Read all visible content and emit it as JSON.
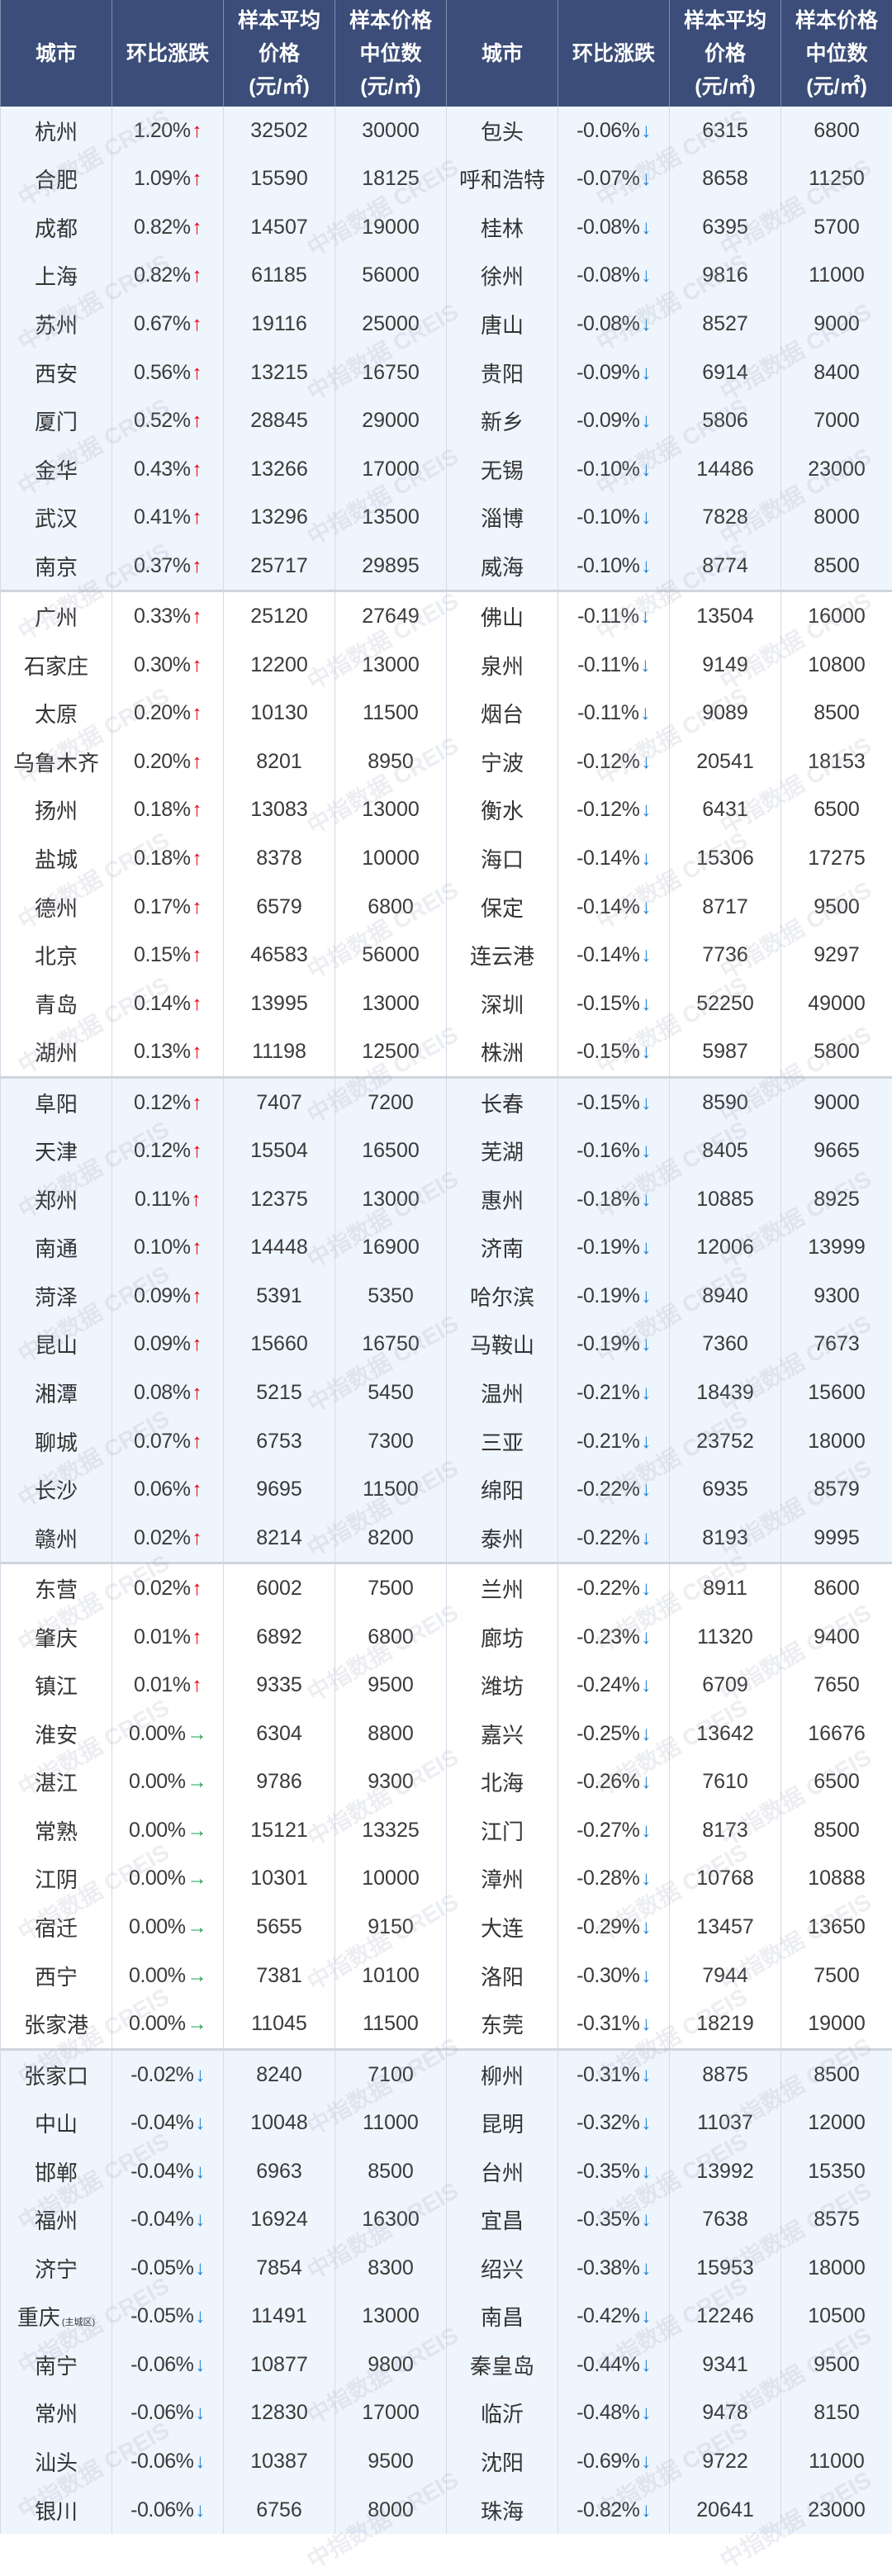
{
  "header": {
    "city": "城市",
    "change": "环比涨跌",
    "avg_price": [
      "样本平均",
      "价格",
      "(元/㎡)"
    ],
    "median_price": [
      "样本价格",
      "中位数",
      "(元/㎡)"
    ]
  },
  "colors": {
    "header_bg": "#3b4d78",
    "up": "#e60012",
    "down": "#1e7fd0",
    "flat": "#1aa34a",
    "band": "#eef5fd"
  },
  "icons": {
    "up": "arrow-up-icon",
    "down": "arrow-down-icon",
    "flat": "arrow-right-icon"
  },
  "watermark": "中指数据 CREIS",
  "rows": [
    [
      "杭州",
      "1.20%",
      "32502",
      "30000",
      "包头",
      "-0.06%",
      "6315",
      "6800"
    ],
    [
      "合肥",
      "1.09%",
      "15590",
      "18125",
      "呼和浩特",
      "-0.07%",
      "8658",
      "11250"
    ],
    [
      "成都",
      "0.82%",
      "14507",
      "19000",
      "桂林",
      "-0.08%",
      "6395",
      "5700"
    ],
    [
      "上海",
      "0.82%",
      "61185",
      "56000",
      "徐州",
      "-0.08%",
      "9816",
      "11000"
    ],
    [
      "苏州",
      "0.67%",
      "19116",
      "25000",
      "唐山",
      "-0.08%",
      "8527",
      "9000"
    ],
    [
      "西安",
      "0.56%",
      "13215",
      "16750",
      "贵阳",
      "-0.09%",
      "6914",
      "8400"
    ],
    [
      "厦门",
      "0.52%",
      "28845",
      "29000",
      "新乡",
      "-0.09%",
      "5806",
      "7000"
    ],
    [
      "金华",
      "0.43%",
      "13266",
      "17000",
      "无锡",
      "-0.10%",
      "14486",
      "23000"
    ],
    [
      "武汉",
      "0.41%",
      "13296",
      "13500",
      "淄博",
      "-0.10%",
      "7828",
      "8000"
    ],
    [
      "南京",
      "0.37%",
      "25717",
      "29895",
      "威海",
      "-0.10%",
      "8774",
      "8500"
    ],
    [
      "广州",
      "0.33%",
      "25120",
      "27649",
      "佛山",
      "-0.11%",
      "13504",
      "16000"
    ],
    [
      "石家庄",
      "0.30%",
      "12200",
      "13000",
      "泉州",
      "-0.11%",
      "9149",
      "10800"
    ],
    [
      "太原",
      "0.20%",
      "10130",
      "11500",
      "烟台",
      "-0.11%",
      "9089",
      "8500"
    ],
    [
      "乌鲁木齐",
      "0.20%",
      "8201",
      "8950",
      "宁波",
      "-0.12%",
      "20541",
      "18153"
    ],
    [
      "扬州",
      "0.18%",
      "13083",
      "13000",
      "衡水",
      "-0.12%",
      "6431",
      "6500"
    ],
    [
      "盐城",
      "0.18%",
      "8378",
      "10000",
      "海口",
      "-0.14%",
      "15306",
      "17275"
    ],
    [
      "德州",
      "0.17%",
      "6579",
      "6800",
      "保定",
      "-0.14%",
      "8717",
      "9500"
    ],
    [
      "北京",
      "0.15%",
      "46583",
      "56000",
      "连云港",
      "-0.14%",
      "7736",
      "9297"
    ],
    [
      "青岛",
      "0.14%",
      "13995",
      "13000",
      "深圳",
      "-0.15%",
      "52250",
      "49000"
    ],
    [
      "湖州",
      "0.13%",
      "11198",
      "12500",
      "株洲",
      "-0.15%",
      "5987",
      "5800"
    ],
    [
      "阜阳",
      "0.12%",
      "7407",
      "7200",
      "长春",
      "-0.15%",
      "8590",
      "9000"
    ],
    [
      "天津",
      "0.12%",
      "15504",
      "16500",
      "芜湖",
      "-0.16%",
      "8405",
      "9665"
    ],
    [
      "郑州",
      "0.11%",
      "12375",
      "13000",
      "惠州",
      "-0.18%",
      "10885",
      "8925"
    ],
    [
      "南通",
      "0.10%",
      "14448",
      "16900",
      "济南",
      "-0.19%",
      "12006",
      "13999"
    ],
    [
      "菏泽",
      "0.09%",
      "5391",
      "5350",
      "哈尔滨",
      "-0.19%",
      "8940",
      "9300"
    ],
    [
      "昆山",
      "0.09%",
      "15660",
      "16750",
      "马鞍山",
      "-0.19%",
      "7360",
      "7673"
    ],
    [
      "湘潭",
      "0.08%",
      "5215",
      "5450",
      "温州",
      "-0.21%",
      "18439",
      "15600"
    ],
    [
      "聊城",
      "0.07%",
      "6753",
      "7300",
      "三亚",
      "-0.21%",
      "23752",
      "18000"
    ],
    [
      "长沙",
      "0.06%",
      "9695",
      "11500",
      "绵阳",
      "-0.22%",
      "6935",
      "8579"
    ],
    [
      "赣州",
      "0.02%",
      "8214",
      "8200",
      "泰州",
      "-0.22%",
      "8193",
      "9995"
    ],
    [
      "东营",
      "0.02%",
      "6002",
      "7500",
      "兰州",
      "-0.22%",
      "8911",
      "8600"
    ],
    [
      "肇庆",
      "0.01%",
      "6892",
      "6800",
      "廊坊",
      "-0.23%",
      "11320",
      "9400"
    ],
    [
      "镇江",
      "0.01%",
      "9335",
      "9500",
      "潍坊",
      "-0.24%",
      "6709",
      "7650"
    ],
    [
      "淮安",
      "0.00%",
      "6304",
      "8800",
      "嘉兴",
      "-0.25%",
      "13642",
      "16676"
    ],
    [
      "湛江",
      "0.00%",
      "9786",
      "9300",
      "北海",
      "-0.26%",
      "7610",
      "6500"
    ],
    [
      "常熟",
      "0.00%",
      "15121",
      "13325",
      "江门",
      "-0.27%",
      "8173",
      "8500"
    ],
    [
      "江阴",
      "0.00%",
      "10301",
      "10000",
      "漳州",
      "-0.28%",
      "10768",
      "10888"
    ],
    [
      "宿迁",
      "0.00%",
      "5655",
      "9150",
      "大连",
      "-0.29%",
      "13457",
      "13650"
    ],
    [
      "西宁",
      "0.00%",
      "7381",
      "10100",
      "洛阳",
      "-0.30%",
      "7944",
      "7500"
    ],
    [
      "张家港",
      "0.00%",
      "11045",
      "11500",
      "东莞",
      "-0.31%",
      "18219",
      "19000"
    ],
    [
      "张家口",
      "-0.02%",
      "8240",
      "7100",
      "柳州",
      "-0.31%",
      "8875",
      "8500"
    ],
    [
      "中山",
      "-0.04%",
      "10048",
      "11000",
      "昆明",
      "-0.32%",
      "11037",
      "12000"
    ],
    [
      "邯郸",
      "-0.04%",
      "6963",
      "8500",
      "台州",
      "-0.35%",
      "13992",
      "15350"
    ],
    [
      "福州",
      "-0.04%",
      "16924",
      "16300",
      "宜昌",
      "-0.35%",
      "7638",
      "8575"
    ],
    [
      "济宁",
      "-0.05%",
      "7854",
      "8300",
      "绍兴",
      "-0.38%",
      "15953",
      "18000"
    ],
    [
      "重庆",
      "-0.05%",
      "11491",
      "13000",
      "南昌",
      "-0.42%",
      "12246",
      "10500"
    ],
    [
      "南宁",
      "-0.06%",
      "10877",
      "9800",
      "秦皇岛",
      "-0.44%",
      "9341",
      "9500"
    ],
    [
      "常州",
      "-0.06%",
      "12830",
      "17000",
      "临沂",
      "-0.48%",
      "9478",
      "8150"
    ],
    [
      "汕头",
      "-0.06%",
      "10387",
      "9500",
      "沈阳",
      "-0.69%",
      "9722",
      "11000"
    ],
    [
      "银川",
      "-0.06%",
      "6756",
      "8000",
      "珠海",
      "-0.82%",
      "20641",
      "23000"
    ]
  ],
  "notes": {
    "45": "(主城区)"
  }
}
